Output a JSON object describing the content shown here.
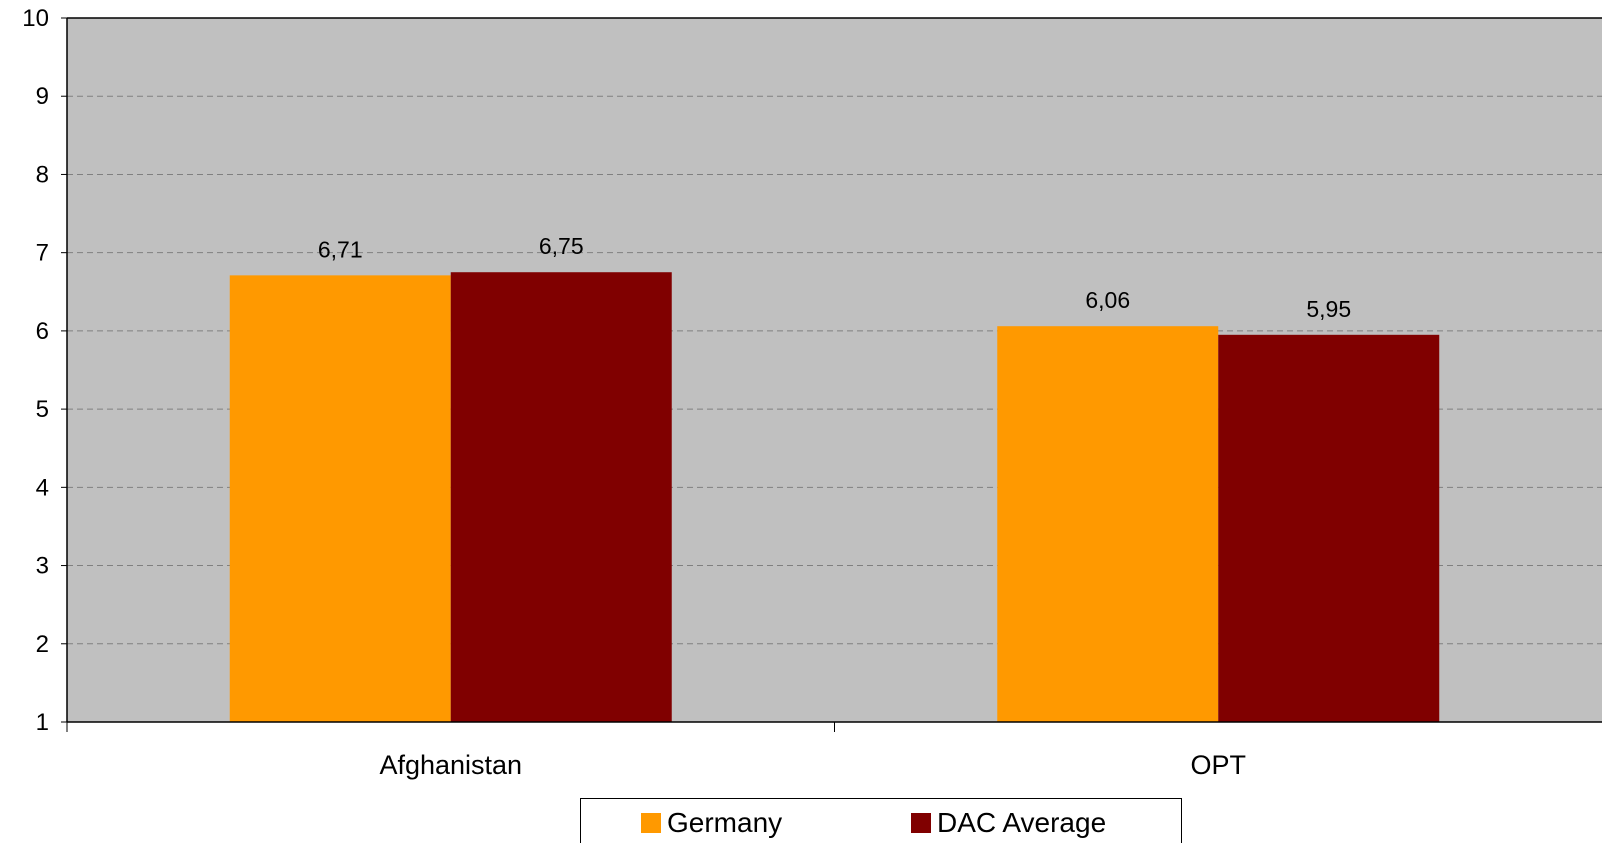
{
  "chart_data": {
    "type": "bar",
    "title": "",
    "xlabel": "",
    "ylabel": "",
    "categories": [
      "Afghanistan",
      "OPT"
    ],
    "series": [
      {
        "name": "Germany",
        "values": [
          6.71,
          6.06
        ],
        "labels": [
          "6,71",
          "6,06"
        ],
        "color": "#FF9900"
      },
      {
        "name": "DAC Average",
        "values": [
          6.75,
          5.95
        ],
        "labels": [
          "6,75",
          "5,95"
        ],
        "color": "#800000"
      }
    ],
    "ylim": [
      1,
      10
    ],
    "yticks": [
      "1",
      "2",
      "3",
      "4",
      "5",
      "6",
      "7",
      "8",
      "9",
      "10"
    ],
    "grid": true,
    "plot_background": "#C0C0C0",
    "legend_position": "bottom"
  }
}
